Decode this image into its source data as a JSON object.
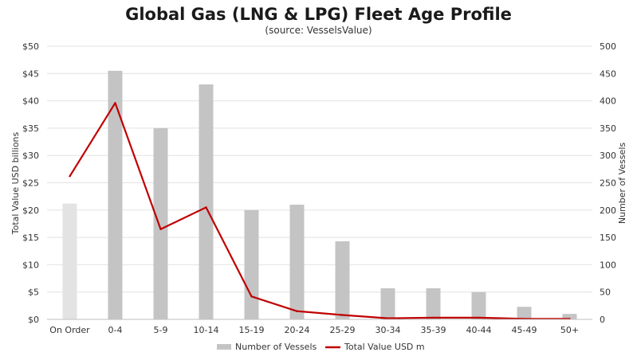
{
  "chart_data": {
    "type": "bar",
    "title": "Global Gas (LNG & LPG) Fleet Age Profile",
    "subtitle": "(source: VesselsValue)",
    "categories": [
      "On Order",
      "0-4",
      "5-9",
      "10-14",
      "15-19",
      "20-24",
      "25-29",
      "30-34",
      "35-39",
      "40-44",
      "45-49",
      "50+"
    ],
    "series": [
      {
        "name": "Number of Vessels",
        "type": "bar",
        "axis": "right",
        "color": "#c4c4c4",
        "on_order_color": "#e3e3e3",
        "values": [
          212,
          455,
          350,
          430,
          200,
          210,
          143,
          57,
          57,
          50,
          23,
          10
        ]
      },
      {
        "name": "Total Value USD m",
        "type": "line",
        "axis": "left",
        "color": "#c00000",
        "values": [
          26.2,
          39.6,
          16.5,
          20.5,
          4.2,
          1.5,
          0.8,
          0.2,
          0.3,
          0.3,
          0.1,
          0.1
        ]
      }
    ],
    "ylabel_left": "Total Value USD billions",
    "ylabel_right": "Number of Vessels",
    "ylim_left": [
      0,
      50
    ],
    "ylim_right": [
      0,
      500
    ],
    "yticks_left": [
      "$0",
      "$5",
      "$10",
      "$15",
      "$20",
      "$25",
      "$30",
      "$35",
      "$40",
      "$45",
      "$50"
    ],
    "yticks_right": [
      "0",
      "50",
      "100",
      "150",
      "200",
      "250",
      "300",
      "350",
      "400",
      "450",
      "500"
    ],
    "grid": true,
    "legend_position": "bottom"
  }
}
